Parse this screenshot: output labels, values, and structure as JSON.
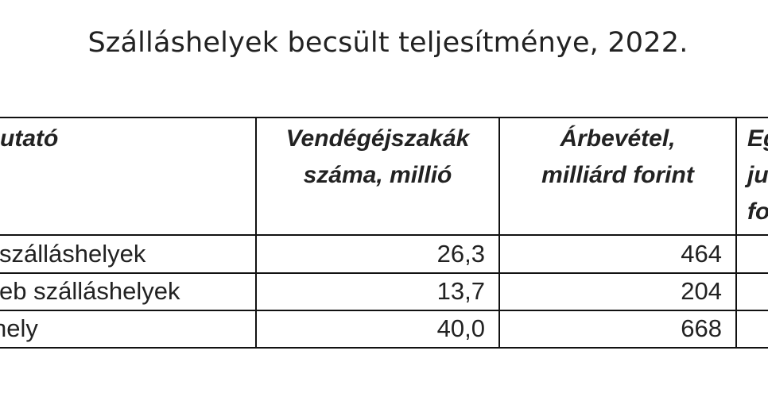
{
  "title": "Szálláshelyek becsült teljesítménye, 2022.",
  "table": {
    "headers": [
      {
        "lines": [
          "utató"
        ]
      },
      {
        "lines": [
          "Vendégéjszakák",
          "száma, millió"
        ]
      },
      {
        "lines": [
          "Árbevétel,",
          "milliárd forint"
        ]
      },
      {
        "lines": [
          "Eg",
          "ju",
          "fo"
        ]
      }
    ],
    "rows": [
      {
        "label": "szálláshelyek",
        "nights": "26,3",
        "revenue": "464"
      },
      {
        "label": "eb szálláshelyek",
        "nights": "13,7",
        "revenue": "204"
      },
      {
        "label": "hely",
        "nights": "40,0",
        "revenue": "668"
      }
    ]
  }
}
